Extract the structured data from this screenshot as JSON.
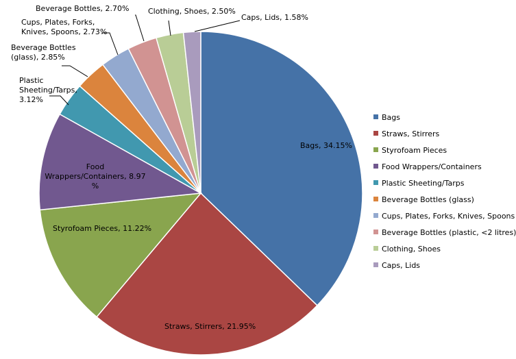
{
  "chart_data": {
    "type": "pie",
    "slices": [
      {
        "name": "Bags",
        "value": 34.15,
        "label": [
          "Bags, 34.15%"
        ],
        "legend": "Bags",
        "color": "#4572A7"
      },
      {
        "name": "Straws, Stirrers",
        "value": 21.95,
        "label": [
          "Straws, Stirrers, 21.95%"
        ],
        "legend": "Straws, Stirrers",
        "color": "#AA4643"
      },
      {
        "name": "Styrofoam Pieces",
        "value": 11.22,
        "label": [
          "Styrofoam Pieces, 11.22%"
        ],
        "legend": "Styrofoam Pieces",
        "color": "#89A54E"
      },
      {
        "name": "Food Wrappers/Containers",
        "value": 8.97,
        "label": [
          "Food",
          "Wrappers/Containers, 8.97",
          "%"
        ],
        "legend": "Food Wrappers/Containers",
        "color": "#71588F"
      },
      {
        "name": "Plastic Sheeting/Tarps",
        "value": 3.12,
        "label": [
          "Plastic",
          "Sheeting/Tarps,",
          "3.12%"
        ],
        "legend": "Plastic Sheeting/Tarps",
        "color": "#4198AF"
      },
      {
        "name": "Beverage Bottles (glass)",
        "value": 2.85,
        "label": [
          "Beverage Bottles",
          "(glass), 2.85%"
        ],
        "legend": "Beverage Bottles (glass)",
        "color": "#DB843D"
      },
      {
        "name": "Cups, Plates, Forks, Knives, Spoons",
        "value": 2.73,
        "label": [
          "Cups, Plates, Forks,",
          "Knives, Spoons, 2.73%"
        ],
        "legend": "Cups, Plates, Forks, Knives, Spoons",
        "color": "#93A9CF"
      },
      {
        "name": "Beverage Bottles (plastic, <2 litres)",
        "value": 2.7,
        "label": [
          "Beverage Bottles, 2.70%"
        ],
        "legend": "Beverage Bottles (plastic, <2 litres)",
        "color": "#D19392"
      },
      {
        "name": "Clothing, Shoes",
        "value": 2.5,
        "label": [
          "Clothing, Shoes, 2.50%"
        ],
        "legend": "Clothing, Shoes",
        "color": "#B9CD96"
      },
      {
        "name": "Caps, Lids",
        "value": 1.58,
        "label": [
          "Caps, Lids, 1.58%"
        ],
        "legend": "Caps, Lids",
        "color": "#A99BBD"
      }
    ],
    "legend_position": "right"
  }
}
